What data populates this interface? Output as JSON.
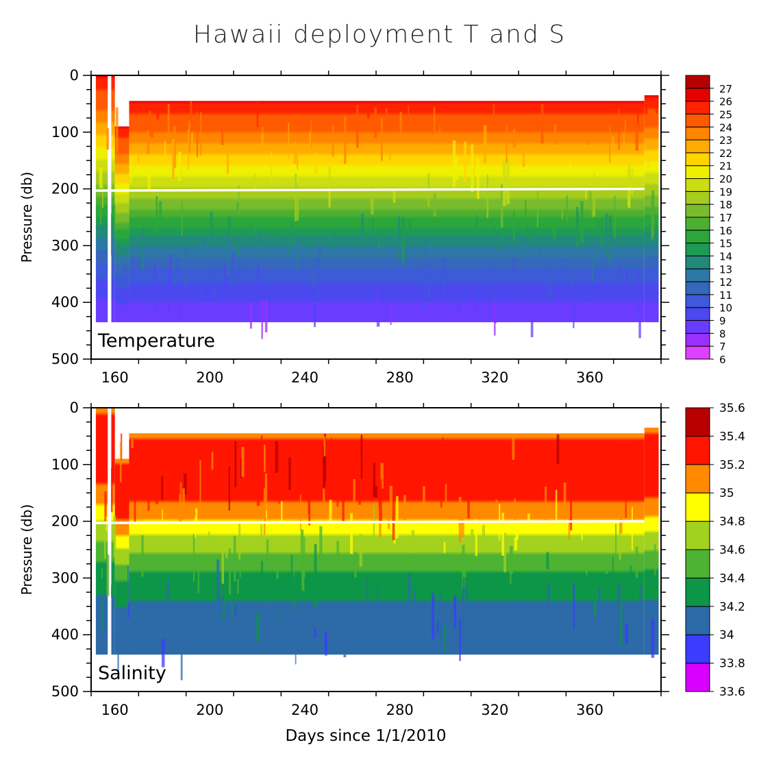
{
  "title": "Hawaii deployment T and S",
  "chart_data": [
    {
      "type": "heatmap",
      "panel_label": "Temperature",
      "ylabel": "Pressure (db)",
      "xlabel": "",
      "xlim": [
        150,
        390
      ],
      "ylim": [
        0,
        500
      ],
      "y_inverted": true,
      "x_ticks": [
        160,
        200,
        240,
        280,
        320,
        360
      ],
      "y_ticks": [
        0,
        100,
        200,
        300,
        400,
        500
      ],
      "depth_profile_pressure": [
        45,
        70,
        100,
        130,
        160,
        190,
        220,
        260,
        300,
        340,
        380,
        420,
        435
      ],
      "depth_profile_value": [
        26,
        25,
        24,
        22.5,
        21,
        19.5,
        18,
        15.5,
        13,
        11,
        9.5,
        8.5,
        8
      ],
      "data_top_pressure": 45,
      "data_bottom_pressure": 435,
      "colorbar_levels": [
        "6",
        "7",
        "8",
        "9",
        "10",
        "11",
        "12",
        "13",
        "14",
        "15",
        "16",
        "17",
        "18",
        "19",
        "20",
        "21",
        "22",
        "23",
        "24",
        "25",
        "26",
        "27"
      ],
      "colorbar_colors": [
        "#e040ff",
        "#9b30ff",
        "#6a3cff",
        "#4c48ef",
        "#3d5ad8",
        "#3568bb",
        "#2d78a4",
        "#218a7a",
        "#1f9a55",
        "#2aa63c",
        "#4daf32",
        "#78bc2d",
        "#a6cc1c",
        "#ccde12",
        "#eef000",
        "#ffd500",
        "#ffac00",
        "#ff8400",
        "#ff5a00",
        "#ff2200",
        "#e70000",
        "#b60000"
      ]
    },
    {
      "type": "heatmap",
      "panel_label": "Salinity",
      "ylabel": "Pressure (db)",
      "xlabel": "Days since 1/1/2010",
      "xlim": [
        150,
        390
      ],
      "ylim": [
        0,
        500
      ],
      "y_inverted": true,
      "x_ticks": [
        160,
        200,
        240,
        280,
        320,
        360
      ],
      "y_ticks": [
        0,
        100,
        200,
        300,
        400,
        500
      ],
      "depth_profile_pressure": [
        45,
        70,
        100,
        150,
        195,
        215,
        240,
        270,
        300,
        330,
        360,
        435
      ],
      "depth_profile_value": [
        35.1,
        35.3,
        35.3,
        35.3,
        35.05,
        34.85,
        34.7,
        34.5,
        34.35,
        34.25,
        34.1,
        34.1
      ],
      "data_top_pressure": 45,
      "data_bottom_pressure": 435,
      "colorbar_levels": [
        "33.6",
        "33.8",
        "34",
        "34.2",
        "34.4",
        "34.6",
        "34.8",
        "35",
        "35.2",
        "35.4",
        "35.6"
      ],
      "colorbar_colors": [
        "#d800ff",
        "#3b3cff",
        "#2c6aa8",
        "#0d9648",
        "#4eb233",
        "#a2d21e",
        "#ffff00",
        "#ff8a00",
        "#ff1500",
        "#b80000"
      ]
    }
  ]
}
